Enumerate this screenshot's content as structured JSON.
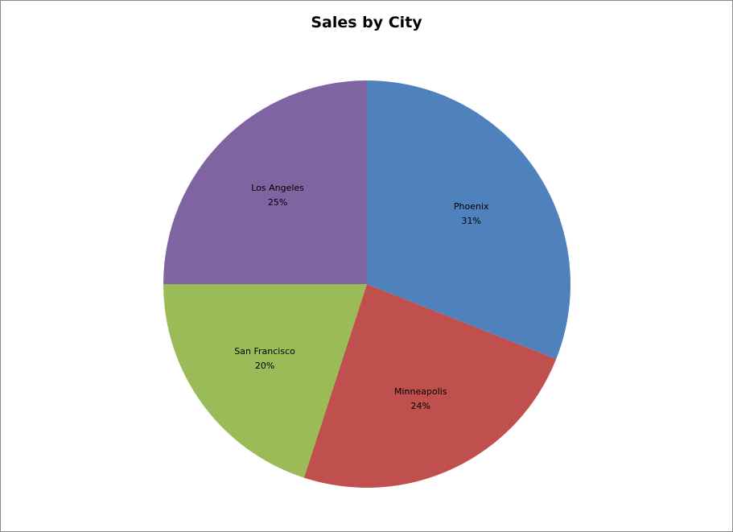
{
  "chart_data": {
    "type": "pie",
    "title": "Sales by City",
    "categories": [
      "Phoenix",
      "Minneapolis",
      "San Francisco",
      "Los Angeles"
    ],
    "values": [
      31,
      24,
      20,
      25
    ],
    "labels": [
      "31%",
      "24%",
      "20%",
      "25%"
    ],
    "colors": [
      "#4F81BD",
      "#C0504D",
      "#9BBB59",
      "#8064A2"
    ],
    "start": "12 o'clock",
    "direction": "clockwise",
    "legend": "none"
  }
}
